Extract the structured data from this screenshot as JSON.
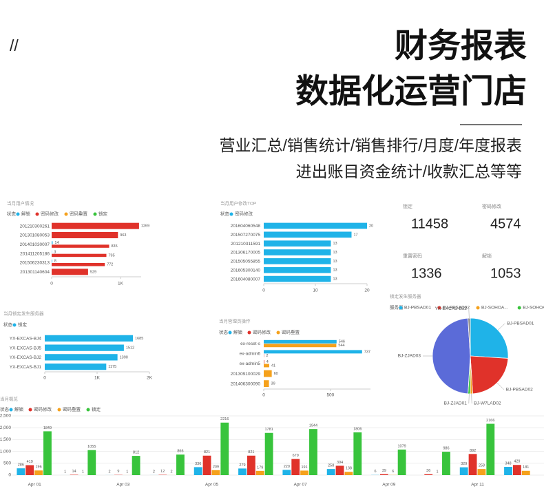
{
  "header": {
    "mark": "//",
    "title_lines": [
      "财务报表",
      "数据化运营门店"
    ],
    "subtitle_lines": [
      "营业汇总/销售统计/销售排行/月度/年度报表",
      "进出账目资金统计/收款汇总等等"
    ]
  },
  "kpis": [
    {
      "label": "锁定",
      "value": 11458
    },
    {
      "label": "密码修改",
      "value": 4574
    },
    {
      "label": "重置密码",
      "value": 1336
    },
    {
      "label": "解锁",
      "value": 1053
    }
  ],
  "chart_data": [
    {
      "type": "hbar",
      "title": "当月用户情况",
      "legend_title": "状态",
      "categories": [
        "201210300261",
        "201301080053",
        "201401030007",
        "201411205186",
        "201506230313",
        "201301140604"
      ],
      "series": [
        {
          "name": "解锁",
          "color": "#1fb3e8",
          "values": [
            null,
            null,
            14,
            3,
            8,
            null
          ]
        },
        {
          "name": "密码修改",
          "color": "#e0322a",
          "values": [
            1269,
            963,
            835,
            795,
            772,
            529
          ]
        },
        {
          "name": "密码重置",
          "color": "#f5a11c",
          "values": [
            null,
            null,
            null,
            null,
            null,
            null
          ]
        },
        {
          "name": "锁定",
          "color": "#38c43c",
          "values": [
            null,
            null,
            null,
            null,
            null,
            null
          ]
        }
      ],
      "xlim": [
        0,
        1300
      ],
      "xticks": [
        0,
        {
          "value": 1000,
          "label": "1K"
        }
      ]
    },
    {
      "type": "hbar",
      "title": "当月用户修改TOP",
      "legend_title": "状态",
      "categories": [
        "201604060548",
        "201507270075",
        "201210311591",
        "201306170005",
        "201505055855",
        "201605300140",
        "201604080007"
      ],
      "series": [
        {
          "name": "密码修改",
          "color": "#1fb3e8",
          "values": [
            20,
            17,
            13,
            13,
            13,
            13,
            13
          ]
        }
      ],
      "xlim": [
        0,
        20
      ],
      "xticks": [
        0,
        10,
        20
      ]
    },
    {
      "type": "hbar",
      "title": "当月锁定发生服务器",
      "legend_title": "状态",
      "categories": [
        "YX-EXCAS-BJ4",
        "YX-EXCAS-BJ5",
        "YX-EXCAS-BJ2",
        "YX-EXCAS-BJ1"
      ],
      "series": [
        {
          "name": "锁定",
          "color": "#1fb3e8",
          "values": [
            1685,
            1512,
            1390,
            1175
          ]
        }
      ],
      "xlim": [
        0,
        2000
      ],
      "xticks": [
        0,
        {
          "value": 1000,
          "label": "1K"
        },
        {
          "value": 2000,
          "label": "2K"
        }
      ]
    },
    {
      "type": "hbar",
      "title": "当月管理员操作",
      "legend_title": "状态",
      "categories": [
        "ex-reset-s",
        "ex-admin6",
        "ex-admin5",
        "201309100029",
        "201406300090"
      ],
      "series": [
        {
          "name": "解锁",
          "color": "#1fb3e8",
          "values": [
            546,
            737,
            null,
            null,
            null
          ]
        },
        {
          "name": "密码修改",
          "color": "#e0322a",
          "values": [
            null,
            2,
            4,
            null,
            null
          ]
        },
        {
          "name": "密码重置",
          "color": "#f5a11c",
          "values": [
            544,
            null,
            41,
            60,
            39
          ]
        }
      ],
      "xlim": [
        0,
        800
      ],
      "xticks": [
        0,
        500
      ]
    },
    {
      "type": "pie",
      "title": "锁定发生服务器",
      "legend_title": "服务器",
      "legend": [
        "BJ-PBSAD01",
        "BJ-PBSAD02",
        "BJ-SOHOA...",
        "BJ-SOHOA..."
      ],
      "legend_colors": [
        "#1fb3e8",
        "#e0322a",
        "#f5a11c",
        "#38c43c"
      ],
      "categories": [
        "BJ-PBSAD01",
        "BJ-PBSAD02",
        "BJ-W7LAD02",
        "BJ-ZJAD01",
        "BJ-ZJAD03",
        "YX-EXCAS-BJ2"
      ],
      "values": [
        26,
        23,
        1,
        1,
        48,
        1
      ],
      "colors": [
        "#1fb3e8",
        "#e0322a",
        "#f5a11c",
        "#38c43c",
        "#5b6bd8",
        "#8a8a8a"
      ]
    },
    {
      "type": "bar",
      "title": "当月概览",
      "legend_title": "状态",
      "grid": true,
      "categories": [
        "Apr 01",
        null,
        "Apr 03",
        null,
        "Apr 05",
        null,
        "Apr 07",
        null,
        "Apr 09",
        null,
        "Apr 11",
        null
      ],
      "series": [
        {
          "name": "解锁",
          "color": "#1fb3e8",
          "values": [
            286,
            1,
            2,
            2,
            336,
            279,
            220,
            258,
            6,
            null,
            329,
            348
          ]
        },
        {
          "name": "密码修改",
          "color": "#e0322a",
          "values": [
            419,
            14,
            9,
            12,
            821,
            821,
            679,
            394,
            39,
            36,
            892,
            429
          ]
        },
        {
          "name": "密码重置",
          "color": "#f5a11c",
          "values": [
            196,
            1,
            1,
            2,
            209,
            179,
            191,
            138,
            6,
            1,
            258,
            181
          ]
        },
        {
          "name": "锁定",
          "color": "#38c43c",
          "values": [
            1849,
            1055,
            812,
            866,
            2216,
            1781,
            1944,
            1806,
            1079,
            986,
            2166,
            null
          ]
        }
      ],
      "ylim": [
        0,
        2500
      ],
      "yticks": [
        0,
        500,
        {
          "value": 1000,
          "label": "1,000"
        },
        {
          "value": 1500,
          "label": "1,500"
        },
        {
          "value": 2000,
          "label": "2,000"
        },
        {
          "value": 2500,
          "label": "2,500"
        }
      ]
    }
  ]
}
